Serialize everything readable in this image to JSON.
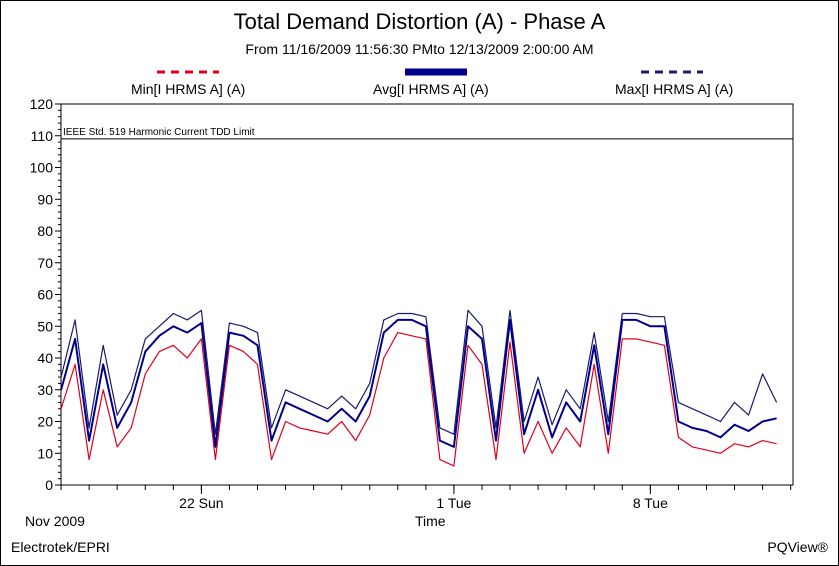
{
  "chart_data": {
    "type": "line",
    "title": "Total Demand Distortion (A) - Phase A",
    "subtitle": "From 11/16/2009 11:56:30 PMto 12/13/2009 2:00:00 AM",
    "xlabel": "Time",
    "x_period_label": "Nov 2009",
    "xlim_days": [
      16.0,
      13.0
    ],
    "ylim": [
      0,
      120
    ],
    "y_ticks": [
      0,
      10,
      20,
      30,
      40,
      50,
      60,
      70,
      80,
      90,
      100,
      110,
      120
    ],
    "x_tick_labels": [
      "22 Sun",
      "1 Tue",
      "8 Tue"
    ],
    "grid": false,
    "legend_position": "top",
    "reference_line": {
      "label": "IEEE Std. 519 Harmonic Current TDD Limit",
      "value": 109
    },
    "series": [
      {
        "name": "Min[I HRMS A] (A)",
        "color": "#e0001b",
        "style": "dashed",
        "x": [
          "11/17 00:00",
          "11/17 12:00",
          "11/18 00:00",
          "11/18 12:00",
          "11/19 00:00",
          "11/19 12:00",
          "11/20 00:00",
          "11/20 12:00",
          "11/21 00:00",
          "11/21 12:00",
          "11/22 00:00",
          "11/22 12:00",
          "11/23 00:00",
          "11/23 12:00",
          "11/24 00:00",
          "11/24 12:00",
          "11/25 00:00",
          "11/25 12:00",
          "11/26 00:00",
          "11/26 12:00",
          "11/27 00:00",
          "11/27 12:00",
          "11/28 00:00",
          "11/28 12:00",
          "11/29 00:00",
          "11/29 12:00",
          "11/30 00:00",
          "11/30 12:00",
          "12/01 00:00",
          "12/01 12:00",
          "12/02 00:00",
          "12/02 12:00",
          "12/03 00:00",
          "12/03 12:00",
          "12/04 00:00",
          "12/04 12:00",
          "12/05 00:00",
          "12/05 12:00",
          "12/06 00:00",
          "12/06 12:00",
          "12/07 00:00",
          "12/07 12:00",
          "12/08 00:00",
          "12/08 12:00",
          "12/09 00:00",
          "12/09 12:00",
          "12/10 00:00",
          "12/10 12:00",
          "12/11 00:00",
          "12/11 12:00",
          "12/12 00:00",
          "12/12 12:00"
        ],
        "y": [
          24,
          38,
          8,
          30,
          12,
          18,
          35,
          42,
          44,
          40,
          46,
          8,
          44,
          42,
          38,
          8,
          20,
          18,
          17,
          16,
          20,
          14,
          22,
          40,
          48,
          47,
          46,
          8,
          6,
          44,
          38,
          8,
          45,
          10,
          20,
          10,
          18,
          12,
          38,
          10,
          46,
          46,
          45,
          44,
          15,
          12,
          11,
          10,
          13,
          12,
          14,
          13
        ]
      },
      {
        "name": "Avg[I HRMS A] (A)",
        "color": "#00008b",
        "style": "solid",
        "x": [
          "11/17 00:00",
          "11/17 12:00",
          "11/18 00:00",
          "11/18 12:00",
          "11/19 00:00",
          "11/19 12:00",
          "11/20 00:00",
          "11/20 12:00",
          "11/21 00:00",
          "11/21 12:00",
          "11/22 00:00",
          "11/22 12:00",
          "11/23 00:00",
          "11/23 12:00",
          "11/24 00:00",
          "11/24 12:00",
          "11/25 00:00",
          "11/25 12:00",
          "11/26 00:00",
          "11/26 12:00",
          "11/27 00:00",
          "11/27 12:00",
          "11/28 00:00",
          "11/28 12:00",
          "11/29 00:00",
          "11/29 12:00",
          "11/30 00:00",
          "11/30 12:00",
          "12/01 00:00",
          "12/01 12:00",
          "12/02 00:00",
          "12/02 12:00",
          "12/03 00:00",
          "12/03 12:00",
          "12/04 00:00",
          "12/04 12:00",
          "12/05 00:00",
          "12/05 12:00",
          "12/06 00:00",
          "12/06 12:00",
          "12/07 00:00",
          "12/07 12:00",
          "12/08 00:00",
          "12/08 12:00",
          "12/09 00:00",
          "12/09 12:00",
          "12/10 00:00",
          "12/10 12:00",
          "12/11 00:00",
          "12/11 12:00",
          "12/12 00:00",
          "12/12 12:00"
        ],
        "y": [
          30,
          46,
          14,
          38,
          18,
          26,
          42,
          47,
          50,
          48,
          51,
          12,
          48,
          47,
          44,
          14,
          26,
          24,
          22,
          20,
          24,
          20,
          28,
          48,
          52,
          52,
          50,
          14,
          12,
          50,
          46,
          14,
          52,
          16,
          30,
          15,
          26,
          20,
          44,
          16,
          52,
          52,
          50,
          50,
          20,
          18,
          17,
          15,
          19,
          17,
          20,
          21
        ]
      },
      {
        "name": "Max[I HRMS A] (A)",
        "color": "#1a1a6e",
        "style": "dashed",
        "x": [
          "11/17 00:00",
          "11/17 12:00",
          "11/18 00:00",
          "11/18 12:00",
          "11/19 00:00",
          "11/19 12:00",
          "11/20 00:00",
          "11/20 12:00",
          "11/21 00:00",
          "11/21 12:00",
          "11/22 00:00",
          "11/22 12:00",
          "11/23 00:00",
          "11/23 12:00",
          "11/24 00:00",
          "11/24 12:00",
          "11/25 00:00",
          "11/25 12:00",
          "11/26 00:00",
          "11/26 12:00",
          "11/27 00:00",
          "11/27 12:00",
          "11/28 00:00",
          "11/28 12:00",
          "11/29 00:00",
          "11/29 12:00",
          "11/30 00:00",
          "11/30 12:00",
          "12/01 00:00",
          "12/01 12:00",
          "12/02 00:00",
          "12/02 12:00",
          "12/03 00:00",
          "12/03 12:00",
          "12/04 00:00",
          "12/04 12:00",
          "12/05 00:00",
          "12/05 12:00",
          "12/06 00:00",
          "12/06 12:00",
          "12/07 00:00",
          "12/07 12:00",
          "12/08 00:00",
          "12/08 12:00",
          "12/09 00:00",
          "12/09 12:00",
          "12/10 00:00",
          "12/10 12:00",
          "12/11 00:00",
          "12/11 12:00",
          "12/12 00:00",
          "12/12 12:00"
        ],
        "y": [
          34,
          52,
          18,
          44,
          22,
          30,
          46,
          50,
          54,
          52,
          55,
          16,
          51,
          50,
          48,
          18,
          30,
          28,
          26,
          24,
          28,
          24,
          32,
          52,
          54,
          54,
          53,
          18,
          16,
          55,
          50,
          18,
          55,
          20,
          34,
          19,
          30,
          24,
          48,
          20,
          54,
          54,
          53,
          53,
          26,
          24,
          22,
          20,
          26,
          22,
          35,
          26
        ]
      }
    ]
  },
  "footer": {
    "left": "Electrotek/EPRI",
    "right": "PQView®"
  }
}
